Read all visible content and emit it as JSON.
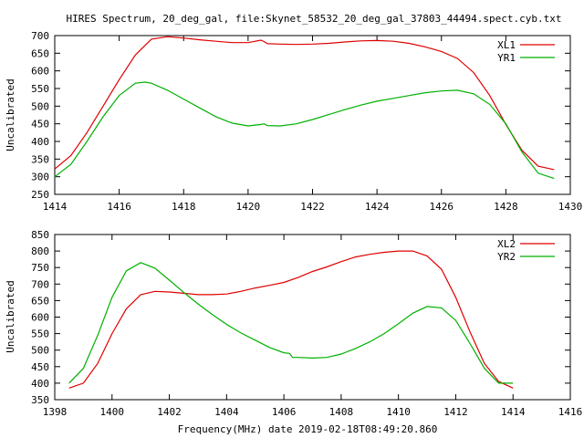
{
  "chart_data": [
    {
      "type": "line",
      "title": "HIRES Spectrum, 20_deg_gal, file:Skynet_58532_20_deg_gal_37803_44494.spect.cyb.txt",
      "ylabel": "Uncalibrated",
      "xlabel": "",
      "xlim": [
        1414,
        1430
      ],
      "ylim": [
        250,
        700
      ],
      "xticks": [
        1414,
        1416,
        1418,
        1420,
        1422,
        1424,
        1426,
        1428,
        1430
      ],
      "yticks": [
        250,
        300,
        350,
        400,
        450,
        500,
        550,
        600,
        650,
        700
      ],
      "grid": false,
      "legend_position": "top-right",
      "series": [
        {
          "name": "XL1",
          "color": "#e00000",
          "x": [
            1414.0,
            1414.5,
            1415.0,
            1415.5,
            1416.0,
            1416.5,
            1417.0,
            1417.5,
            1418.0,
            1418.5,
            1419.0,
            1419.5,
            1420.0,
            1420.4,
            1420.5,
            1420.6,
            1421.0,
            1421.5,
            1422.0,
            1422.5,
            1423.0,
            1423.5,
            1424.0,
            1424.5,
            1425.0,
            1425.5,
            1426.0,
            1426.5,
            1427.0,
            1427.5,
            1428.0,
            1428.5,
            1429.0,
            1429.5
          ],
          "y": [
            322,
            360,
            425,
            500,
            575,
            645,
            690,
            697,
            693,
            688,
            684,
            680,
            680,
            687,
            683,
            677,
            676,
            675,
            676,
            678,
            682,
            685,
            686,
            684,
            678,
            668,
            655,
            635,
            595,
            530,
            448,
            375,
            330,
            320
          ]
        },
        {
          "name": "YR1",
          "color": "#00b000",
          "x": [
            1414.0,
            1414.5,
            1415.0,
            1415.5,
            1416.0,
            1416.5,
            1416.8,
            1417.0,
            1417.5,
            1418.0,
            1418.5,
            1419.0,
            1419.5,
            1420.0,
            1420.4,
            1420.5,
            1420.6,
            1421.0,
            1421.5,
            1422.0,
            1422.5,
            1423.0,
            1423.5,
            1424.0,
            1424.5,
            1425.0,
            1425.5,
            1426.0,
            1426.5,
            1427.0,
            1427.5,
            1428.0,
            1428.5,
            1429.0,
            1429.5
          ],
          "y": [
            300,
            335,
            400,
            470,
            530,
            565,
            568,
            565,
            545,
            520,
            495,
            470,
            452,
            444,
            448,
            450,
            445,
            444,
            450,
            462,
            476,
            490,
            503,
            514,
            522,
            530,
            538,
            543,
            545,
            535,
            505,
            450,
            370,
            310,
            295
          ]
        }
      ]
    },
    {
      "type": "line",
      "title": "",
      "ylabel": "Uncalibrated",
      "xlabel": "Frequency(MHz) date 2019-02-18T08:49:20.860",
      "xlim": [
        1398,
        1416
      ],
      "ylim": [
        350,
        850
      ],
      "xticks": [
        1398,
        1400,
        1402,
        1404,
        1406,
        1408,
        1410,
        1412,
        1414,
        1416
      ],
      "yticks": [
        350,
        400,
        450,
        500,
        550,
        600,
        650,
        700,
        750,
        800,
        850
      ],
      "grid": false,
      "legend_position": "top-right",
      "series": [
        {
          "name": "XL2",
          "color": "#e00000",
          "x": [
            1398.5,
            1399.0,
            1399.5,
            1400.0,
            1400.5,
            1401.0,
            1401.5,
            1402.0,
            1402.5,
            1403.0,
            1403.5,
            1404.0,
            1404.5,
            1405.0,
            1405.5,
            1406.0,
            1406.5,
            1407.0,
            1407.5,
            1408.0,
            1408.5,
            1409.0,
            1409.5,
            1410.0,
            1410.5,
            1411.0,
            1411.5,
            1412.0,
            1412.5,
            1413.0,
            1413.5,
            1414.0
          ],
          "y": [
            385,
            400,
            460,
            550,
            625,
            668,
            678,
            676,
            672,
            668,
            668,
            670,
            678,
            688,
            696,
            705,
            720,
            738,
            752,
            768,
            782,
            790,
            796,
            800,
            800,
            785,
            745,
            660,
            555,
            460,
            405,
            385
          ]
        },
        {
          "name": "YR2",
          "color": "#00b000",
          "x": [
            1398.5,
            1399.0,
            1399.5,
            1400.0,
            1400.5,
            1401.0,
            1401.5,
            1402.0,
            1402.5,
            1403.0,
            1403.5,
            1404.0,
            1404.5,
            1405.0,
            1405.5,
            1406.0,
            1406.2,
            1406.3,
            1406.5,
            1407.0,
            1407.5,
            1408.0,
            1408.5,
            1409.0,
            1409.5,
            1410.0,
            1410.5,
            1411.0,
            1411.5,
            1412.0,
            1412.5,
            1413.0,
            1413.5,
            1414.0
          ],
          "y": [
            400,
            445,
            545,
            660,
            740,
            765,
            748,
            712,
            675,
            640,
            608,
            578,
            552,
            530,
            508,
            492,
            490,
            478,
            478,
            476,
            478,
            488,
            505,
            525,
            550,
            580,
            612,
            632,
            628,
            590,
            520,
            445,
            400,
            400
          ]
        }
      ]
    }
  ]
}
